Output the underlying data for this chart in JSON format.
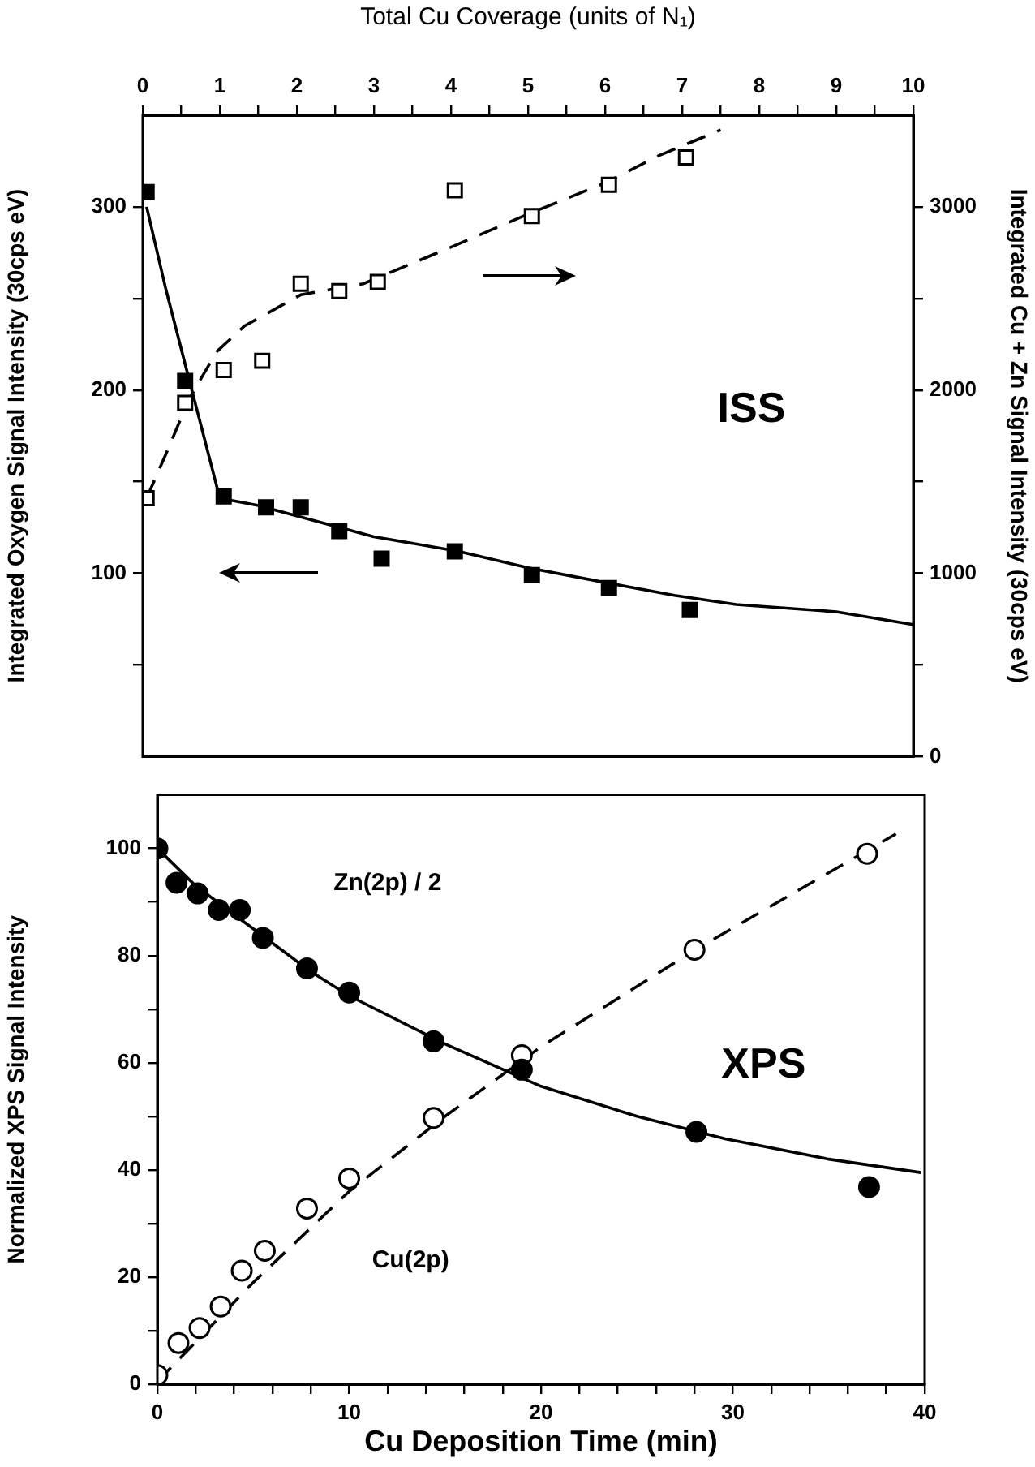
{
  "chart_data": [
    {
      "type": "scatter",
      "xlabel": "Total Cu Coverage (units of N₁)",
      "ylabel": "Integrated Oxygen Signal Intensity (30cps eV)",
      "y2label": "Integrated Cu + Zn Signal Intensity (30cps eV)",
      "xlim": [
        0,
        10
      ],
      "xticks": [
        0,
        {
          "value": 0.5,
          "label": null
        },
        1,
        {
          "value": 1.5,
          "label": null
        },
        2,
        {
          "value": 2.5,
          "label": null
        },
        3,
        {
          "value": 3.5,
          "label": null
        },
        4,
        {
          "value": 4.5,
          "label": null
        },
        5,
        {
          "value": 5.5,
          "label": null
        },
        6,
        {
          "value": 6.5,
          "label": null
        },
        7,
        {
          "value": 7.5,
          "label": null
        },
        8,
        {
          "value": 8.5,
          "label": null
        },
        9,
        {
          "value": 9.5,
          "label": null
        },
        10
      ],
      "ylim": [
        0,
        350
      ],
      "yticks": [
        {
          "value": 50,
          "label": null
        },
        100,
        {
          "value": 150,
          "label": null
        },
        200,
        {
          "value": 250,
          "label": null
        },
        300
      ],
      "y2lim": [
        0,
        3500
      ],
      "y2ticks": [
        0,
        {
          "value": 500,
          "label": null
        },
        1000,
        {
          "value": 1500,
          "label": null
        },
        2000,
        {
          "value": 2500,
          "label": null
        },
        3000
      ],
      "annotations": [
        "ISS"
      ],
      "series": [
        {
          "marker": "square",
          "color": "#000000",
          "x": [
            0.05,
            0.55,
            1.05,
            1.6,
            2.05,
            2.55,
            3.1,
            4.05,
            5.05,
            6.05,
            7.1
          ],
          "values": [
            308,
            205,
            142,
            136,
            136,
            123,
            108,
            112,
            99,
            92,
            80
          ]
        },
        {
          "marker": "square",
          "color": "#ffffff",
          "axis": "y2",
          "x": [
            0.05,
            0.55,
            1.05,
            1.55,
            2.05,
            2.55,
            3.05,
            4.05,
            5.05,
            6.05,
            7.05
          ],
          "values": [
            1410,
            1930,
            2110,
            2160,
            2580,
            2540,
            2590,
            3090,
            2950,
            3120,
            3270
          ]
        },
        {
          "type": "line",
          "marker": "none",
          "color": "#000000",
          "line_style": "solid",
          "x": [
            0.05,
            0.3,
            0.6,
            1.0,
            1.5,
            2.2,
            3.0,
            4.1,
            5.0,
            6.0,
            6.9,
            7.7,
            9.0,
            10.0
          ],
          "values": [
            300,
            255,
            206,
            141,
            137,
            129,
            120,
            112,
            103,
            95,
            88,
            83,
            79,
            72
          ]
        },
        {
          "type": "line",
          "marker": "none",
          "color": "#000000",
          "line_style": "dashed",
          "axis": "y2",
          "x": [
            0.05,
            0.3,
            0.6,
            0.96,
            1.32,
            2.05,
            2.86,
            4.0,
            5.0,
            6.0,
            6.7,
            7.5
          ],
          "values": [
            1410,
            1650,
            1950,
            2210,
            2350,
            2520,
            2580,
            2780,
            2960,
            3130,
            3280,
            3420
          ]
        }
      ]
    },
    {
      "type": "scatter",
      "xlabel": "Cu Deposition Time (min)",
      "ylabel": "Normalized XPS Signal Intensity",
      "xlim": [
        0,
        40
      ],
      "xticks": [
        0,
        {
          "value": 2,
          "label": null
        },
        {
          "value": 4,
          "label": null
        },
        {
          "value": 6,
          "label": null
        },
        {
          "value": 8,
          "label": null
        },
        10,
        {
          "value": 12,
          "label": null
        },
        {
          "value": 14,
          "label": null
        },
        {
          "value": 16,
          "label": null
        },
        {
          "value": 18,
          "label": null
        },
        20,
        {
          "value": 22,
          "label": null
        },
        {
          "value": 24,
          "label": null
        },
        {
          "value": 26,
          "label": null
        },
        {
          "value": 28,
          "label": null
        },
        30,
        {
          "value": 32,
          "label": null
        },
        {
          "value": 34,
          "label": null
        },
        {
          "value": 36,
          "label": null
        },
        {
          "value": 38,
          "label": null
        },
        40
      ],
      "ylim": [
        0,
        110
      ],
      "yticks": [
        0,
        {
          "value": 10,
          "label": null
        },
        20,
        {
          "value": 30,
          "label": null
        },
        40,
        {
          "value": 50,
          "label": null
        },
        60,
        {
          "value": 70,
          "label": null
        },
        80,
        {
          "value": 90,
          "label": null
        },
        100
      ],
      "annotations": [
        "XPS"
      ],
      "series": [
        {
          "name": "Zn(2p) / 2",
          "marker": "circle",
          "color": "#000000",
          "x": [
            0,
            1.0,
            2.1,
            3.2,
            4.3,
            5.5,
            7.8,
            10.0,
            14.4,
            19.0,
            28.1,
            37.1
          ],
          "values": [
            100,
            93.6,
            91.6,
            88.5,
            88.5,
            83.3,
            77.6,
            73.1,
            64.0,
            58.7,
            47.1,
            36.8
          ]
        },
        {
          "name": "Cu(2p)",
          "marker": "circle",
          "color": "#ffffff",
          "x": [
            0,
            1.1,
            2.2,
            3.3,
            4.4,
            5.6,
            7.8,
            10.0,
            14.4,
            19.0,
            28.0,
            37.0
          ],
          "values": [
            1.7,
            7.7,
            10.5,
            14.5,
            21.2,
            24.9,
            32.8,
            38.4,
            49.7,
            61.4,
            81.1,
            99.0
          ]
        },
        {
          "type": "line",
          "marker": "none",
          "color": "#000000",
          "line_style": "solid",
          "x": [
            0,
            2,
            5,
            8,
            10,
            15,
            20,
            25,
            29.6,
            35,
            39.8
          ],
          "values": [
            100,
            93,
            85,
            77,
            72.5,
            63.5,
            55.6,
            50,
            45.8,
            42,
            39.5
          ]
        },
        {
          "type": "line",
          "marker": "none",
          "color": "#000000",
          "line_style": "dashed",
          "x": [
            0,
            5,
            10,
            15,
            20,
            28,
            38.5
          ],
          "values": [
            0.5,
            19,
            36,
            50,
            63,
            81,
            102.7
          ]
        }
      ]
    }
  ]
}
